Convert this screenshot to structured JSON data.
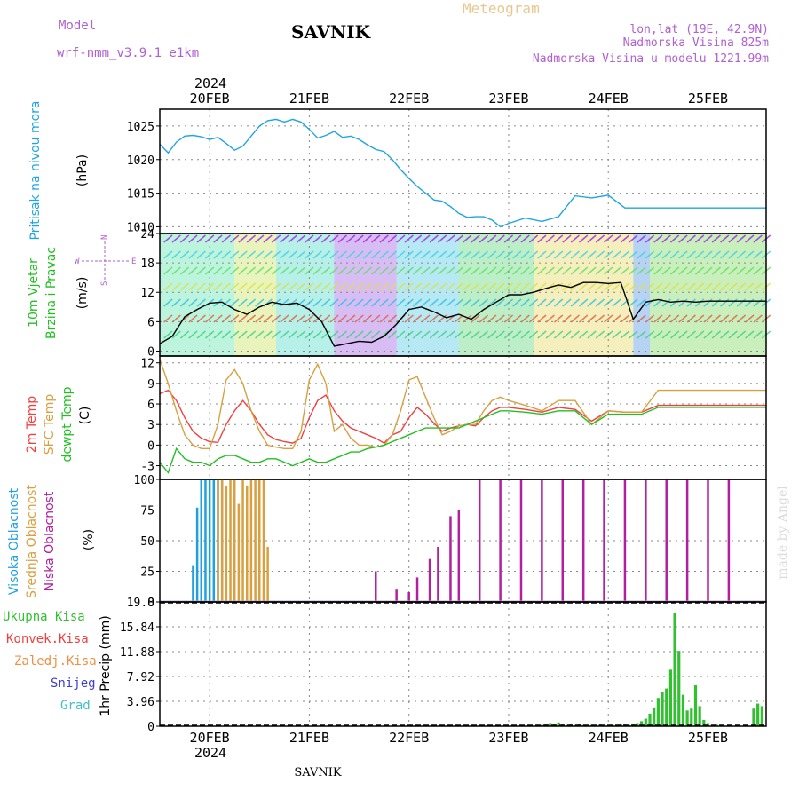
{
  "header": {
    "model_label": "Model",
    "model_name": "wrf-nmm_v3.9.1 e1km",
    "station": "SAVNIK",
    "product": "Meteogram",
    "coords": "lon,lat (19E, 42.9N)",
    "altitude": "Nadmorska Visina 825m",
    "model_altitude": "Nadmorska Visina u modelu 1221.99m",
    "year_top": "2024",
    "year_bottom": "2024",
    "footer": "SAVNIK",
    "credit": "made by Angel"
  },
  "colors": {
    "pressure": "#1fa5e0",
    "temp2m": "#f04040",
    "sfc": "#d8a040",
    "dew": "#20c020",
    "high_cloud": "#20a0e0",
    "mid_cloud": "#d8a040",
    "low_cloud": "#b020a0",
    "precip": "#30c030",
    "model_purple": "#b060d0",
    "meteogram_orange": "#e0c080"
  },
  "x_axis": {
    "day_labels": [
      "20FEB",
      "21FEB",
      "22FEB",
      "23FEB",
      "24FEB",
      "25FEB"
    ]
  },
  "panels": {
    "pressure": {
      "label_main": "Pritisak na nivou mora",
      "unit": "(hPa)",
      "ticks": [
        "1010",
        "1015",
        "1020",
        "1025"
      ]
    },
    "wind": {
      "label_line1": "10m Vjetar",
      "label_line2": "Brzina i Pravac",
      "unit": "(m/s)",
      "ticks": [
        "0",
        "6",
        "12",
        "18",
        "24"
      ],
      "rose_w": "W",
      "rose_e": "E",
      "rose_n": "N",
      "rose_s": "S"
    },
    "temperature": {
      "label_2m": "2m Temp",
      "label_sfc": "SFC Temp",
      "label_dew": "dewpt Temp",
      "unit": "(C)",
      "ticks": [
        "-3",
        "0",
        "3",
        "6",
        "9",
        "12"
      ]
    },
    "cloud": {
      "label_high": "Visoka Oblacnost",
      "label_mid": "Srednja Oblacnost",
      "label_low": "Niska Oblacnost",
      "unit": "(%)",
      "ticks": [
        "0",
        "25",
        "50",
        "75",
        "100"
      ]
    },
    "precip": {
      "legend_total": "Ukupna Kisa",
      "legend_conv": "Konvek.Kisa",
      "legend_frozen": "Zaledj.Kisa",
      "legend_snow": "Snijeg",
      "legend_graupel": "Grad",
      "unit": "1hr Precip (mm)",
      "ticks": [
        "0",
        "3.96",
        "7.92",
        "11.88",
        "15.84",
        "19.8"
      ]
    }
  },
  "chart_data": [
    {
      "type": "line",
      "name": "pressure",
      "x_unit": "hours from 20FEB 00UTC",
      "ylim": [
        1009,
        1027.5
      ],
      "series": [
        {
          "name": "Pritisak na nivou mora",
          "x": [
            -12,
            -10,
            -8,
            -6,
            -4,
            -2,
            0,
            2,
            4,
            6,
            8,
            10,
            12,
            14,
            16,
            18,
            20,
            22,
            24,
            26,
            28,
            30,
            32,
            34,
            36,
            38,
            40,
            42,
            44,
            46,
            48,
            50,
            52,
            54,
            56,
            58,
            60,
            62,
            64,
            66,
            68,
            70,
            72,
            76,
            80,
            84,
            88,
            92,
            96,
            100,
            104,
            108,
            112,
            114,
            116,
            118,
            120,
            124,
            128,
            132,
            134
          ],
          "values": [
            1022.3,
            1021.0,
            1022.6,
            1023.5,
            1023.6,
            1023.4,
            1023.0,
            1023.3,
            1022.4,
            1021.4,
            1022.0,
            1023.5,
            1025.0,
            1025.8,
            1026.0,
            1025.6,
            1026.0,
            1025.6,
            1024.5,
            1023.2,
            1023.6,
            1024.2,
            1023.3,
            1023.5,
            1023.0,
            1022.2,
            1021.5,
            1021.2,
            1020.0,
            1018.5,
            1017.2,
            1016.0,
            1015.0,
            1014.0,
            1013.8,
            1013.0,
            1012.0,
            1011.4,
            1011.5,
            1011.5,
            1011.0,
            1010.0,
            1010.5,
            1011.3,
            1010.8,
            1011.5,
            1014.6,
            1014.3,
            1014.7,
            1012.8,
            1012.8,
            1012.8,
            1012.8,
            1012.8,
            1012.8,
            1012.8,
            1012.8,
            1012.8,
            1012.8,
            1012.8,
            1012.8
          ]
        }
      ],
      "yticks": [
        1010,
        1015,
        1020,
        1025
      ]
    },
    {
      "type": "line",
      "name": "wind",
      "x_unit": "hours from 20FEB 00UTC",
      "ylim": [
        -1,
        24
      ],
      "series": [
        {
          "name": "speed",
          "x": [
            -12,
            -9,
            -6,
            -3,
            0,
            3,
            6,
            9,
            12,
            15,
            18,
            21,
            24,
            27,
            30,
            33,
            36,
            39,
            42,
            45,
            48,
            51,
            54,
            57,
            60,
            63,
            66,
            69,
            72,
            75,
            78,
            81,
            84,
            87,
            90,
            93,
            96,
            99,
            102,
            105,
            108,
            111,
            114,
            117,
            120,
            123,
            126,
            129,
            132,
            134
          ],
          "values": [
            1.5,
            3,
            7,
            8.5,
            9.8,
            10,
            8.5,
            7.5,
            9,
            10,
            9.5,
            9.8,
            8.5,
            6,
            1,
            1.5,
            2,
            1.8,
            3,
            5.5,
            8.5,
            9,
            8,
            6.8,
            7.5,
            6.5,
            8.5,
            10,
            11.5,
            11.5,
            12,
            12.8,
            13.5,
            13,
            14,
            14,
            13.8,
            14,
            6.5,
            10,
            10.5,
            10,
            10.2,
            10,
            10.2,
            10.2,
            10.2,
            10.2,
            10.2,
            10.2
          ]
        }
      ],
      "yticks": [
        0,
        6,
        12,
        18,
        24
      ]
    },
    {
      "type": "line",
      "name": "temperature",
      "x_unit": "hours from 20FEB 00UTC",
      "ylim": [
        -5,
        13
      ],
      "series": [
        {
          "name": "2m Temp",
          "x": [
            -12,
            -10,
            -8,
            -6,
            -4,
            -2,
            0,
            2,
            4,
            6,
            8,
            10,
            12,
            14,
            16,
            18,
            20,
            22,
            24,
            26,
            28,
            30,
            32,
            34,
            36,
            38,
            40,
            42,
            44,
            46,
            48,
            50,
            52,
            54,
            56,
            58,
            60,
            62,
            64,
            66,
            68,
            70,
            72,
            76,
            80,
            84,
            88,
            92,
            96,
            100,
            104,
            108,
            112,
            114,
            116,
            118,
            120,
            124,
            128,
            132,
            134
          ],
          "values": [
            7.5,
            8,
            6.5,
            4,
            2,
            1,
            0.5,
            0.4,
            3,
            5,
            6.5,
            5,
            3,
            1.5,
            0.8,
            0.5,
            0.3,
            1,
            4,
            6.5,
            7.3,
            5,
            3.5,
            2.5,
            2,
            1.5,
            1,
            0.3,
            1.5,
            2,
            4,
            5.5,
            4.5,
            3.2,
            2,
            2.5,
            2.8,
            3,
            2.8,
            4,
            5,
            5.5,
            5.5,
            5.2,
            4.8,
            5.5,
            5.2,
            3.5,
            5,
            4.8,
            4.8,
            5.8,
            5.8,
            5.8,
            5.8,
            5.8,
            5.8,
            5.8,
            5.8,
            5.8,
            5.8
          ]
        },
        {
          "name": "SFC Temp",
          "x": [
            -12,
            -10,
            -8,
            -6,
            -4,
            -2,
            0,
            2,
            4,
            6,
            8,
            10,
            12,
            14,
            16,
            18,
            20,
            22,
            24,
            26,
            28,
            30,
            32,
            34,
            36,
            38,
            40,
            42,
            44,
            46,
            48,
            50,
            52,
            54,
            56,
            58,
            60,
            62,
            64,
            66,
            68,
            70,
            72,
            76,
            80,
            84,
            88,
            92,
            96,
            100,
            104,
            108,
            112,
            114,
            116,
            118,
            120,
            124,
            128,
            132,
            134
          ],
          "values": [
            12.5,
            9,
            5,
            1.5,
            0,
            -0.5,
            -0.5,
            3,
            9.5,
            11,
            9,
            5,
            2,
            0,
            -0.3,
            -0.5,
            -0.5,
            2,
            9.5,
            11.8,
            9,
            2,
            3,
            1,
            0,
            0,
            -0.3,
            0,
            1.5,
            5,
            9.5,
            10,
            7,
            4,
            1.5,
            2,
            2.8,
            3,
            3,
            5,
            6.5,
            7,
            6.5,
            5.8,
            5,
            6.5,
            6.5,
            3,
            5,
            4.8,
            4.8,
            8,
            8,
            8,
            8,
            8,
            8,
            8,
            8,
            8,
            8
          ]
        },
        {
          "name": "dewpt Temp",
          "x": [
            -12,
            -10,
            -8,
            -6,
            -4,
            -2,
            0,
            2,
            4,
            6,
            8,
            10,
            12,
            14,
            16,
            18,
            20,
            22,
            24,
            26,
            28,
            30,
            32,
            34,
            36,
            38,
            40,
            42,
            44,
            46,
            48,
            50,
            52,
            54,
            56,
            58,
            60,
            62,
            64,
            66,
            68,
            70,
            72,
            76,
            80,
            84,
            88,
            92,
            96,
            100,
            104,
            108,
            112,
            114,
            116,
            118,
            120,
            124,
            128,
            132,
            134
          ],
          "values": [
            -2.5,
            -4,
            -0.5,
            -2,
            -2.5,
            -2.5,
            -3,
            -2,
            -1.5,
            -1.5,
            -2,
            -2.5,
            -2.5,
            -2,
            -2,
            -2.5,
            -3,
            -2.5,
            -2,
            -2.5,
            -2.5,
            -2,
            -1.5,
            -1,
            -1,
            -0.5,
            -0.3,
            0,
            0.5,
            1,
            1.5,
            2,
            2.5,
            2.5,
            2.5,
            2.5,
            2.5,
            3,
            3.5,
            4,
            4.5,
            5,
            5,
            4.8,
            4.5,
            5,
            5,
            3,
            4.5,
            4.5,
            4.5,
            5.5,
            5.5,
            5.5,
            5.5,
            5.5,
            5.5,
            5.5,
            5.5,
            5.5,
            5.5
          ]
        }
      ],
      "yticks": [
        -3,
        0,
        3,
        6,
        9,
        12
      ]
    },
    {
      "type": "bar",
      "name": "cloud",
      "x_unit": "hours from 20FEB 00UTC",
      "ylim": [
        0,
        100
      ],
      "series": [
        {
          "name": "Visoka Oblacnost",
          "x": [
            -4,
            -3,
            -2,
            -1,
            0,
            1,
            2,
            3
          ],
          "values": [
            30,
            77,
            100,
            100,
            100,
            100,
            100,
            100
          ]
        },
        {
          "name": "Srednja Oblacnost",
          "x": [
            2,
            3,
            4,
            5,
            6,
            7,
            8,
            9,
            10,
            11,
            12,
            13,
            14
          ],
          "values": [
            100,
            100,
            95,
            100,
            100,
            80,
            100,
            95,
            100,
            100,
            100,
            100,
            45
          ]
        },
        {
          "name": "Niska Oblacnost",
          "x": [
            40,
            45,
            48,
            50,
            53,
            55,
            58,
            60,
            65,
            70,
            75,
            80,
            85,
            90,
            95,
            100,
            105,
            110,
            115,
            120,
            125
          ],
          "values": [
            25,
            10,
            8,
            20,
            35,
            45,
            70,
            75,
            100,
            100,
            100,
            100,
            100,
            100,
            100,
            100,
            100,
            100,
            100,
            100,
            100
          ]
        }
      ],
      "yticks": [
        0,
        25,
        50,
        75,
        100
      ]
    },
    {
      "type": "bar",
      "name": "precip",
      "x_unit": "hours from 20FEB 00UTC",
      "ylim": [
        0,
        19.8
      ],
      "series": [
        {
          "name": "Ukupna Kisa",
          "x": [
            80,
            81,
            82,
            83,
            84,
            85,
            86,
            87,
            88,
            89,
            90,
            91,
            92,
            93,
            94,
            95,
            96,
            97,
            98,
            99,
            100,
            101,
            102,
            103,
            104,
            105,
            106,
            107,
            108,
            109,
            110,
            111,
            112,
            113,
            114,
            115,
            116,
            117,
            118,
            119,
            120,
            121,
            122,
            123,
            124,
            125,
            126,
            127,
            128,
            129,
            130,
            131,
            132,
            133
          ],
          "values": [
            0.2,
            0.4,
            0.5,
            0.3,
            0.6,
            0.4,
            0.2,
            0.3,
            0.2,
            0.3,
            0.2,
            0.1,
            0.2,
            0.1,
            0.3,
            0.2,
            0.1,
            0.2,
            0.1,
            0.4,
            0.3,
            0.2,
            0.4,
            0.5,
            0.8,
            1.2,
            2.0,
            3.0,
            4.5,
            5.5,
            6.0,
            9.0,
            18.0,
            12.0,
            5.0,
            2.5,
            2.8,
            6.5,
            3.2,
            1.0,
            0.5,
            0.2,
            0.3,
            0.2,
            0,
            0,
            0,
            0,
            0,
            0,
            0,
            2.8,
            3.6,
            3.2
          ]
        }
      ],
      "yticks": [
        0,
        3.96,
        7.92,
        11.88,
        15.84,
        19.8
      ]
    }
  ]
}
